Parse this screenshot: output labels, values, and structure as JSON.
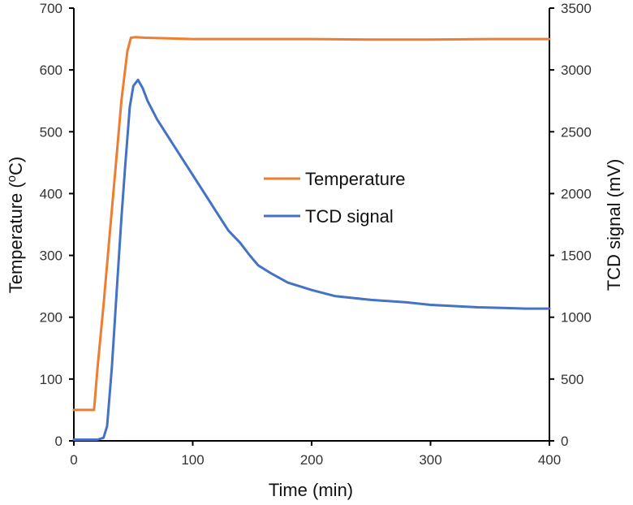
{
  "chart_data": {
    "type": "line",
    "title": "",
    "xlabel": "Time (min)",
    "ylabel_left": {
      "text": "Temperature (",
      "superscript": "o",
      "suffix": "C)"
    },
    "ylabel_right": "TCD signal (mV)",
    "xlim": [
      0,
      400
    ],
    "ylim_left": [
      0,
      700
    ],
    "ylim_right": [
      0,
      3500
    ],
    "x_ticks": [
      "0",
      "100",
      "200",
      "300",
      "400"
    ],
    "y_left_ticks": [
      "0",
      "100",
      "200",
      "300",
      "400",
      "500",
      "600",
      "700"
    ],
    "y_right_ticks": [
      "0",
      "500",
      "1000",
      "1500",
      "2000",
      "2500",
      "3000",
      "3500"
    ],
    "grid": false,
    "legend_position": "center",
    "series": [
      {
        "name": "Temperature",
        "axis": "left",
        "color": "#ED7D31",
        "x": [
          0,
          17,
          20,
          25,
          30,
          35,
          40,
          45,
          48,
          52,
          60,
          80,
          100,
          150,
          200,
          250,
          300,
          350,
          400
        ],
        "y": [
          50,
          50,
          120,
          220,
          330,
          440,
          550,
          630,
          652,
          653,
          652,
          651,
          650,
          650,
          650,
          649,
          649,
          650,
          650
        ]
      },
      {
        "name": "TCD signal",
        "axis": "right",
        "color": "#4472C4",
        "x": [
          0,
          20,
          25,
          28,
          32,
          36,
          40,
          43,
          47,
          50,
          54,
          58,
          62,
          70,
          80,
          90,
          100,
          110,
          120,
          130,
          140,
          148,
          155,
          165,
          180,
          200,
          220,
          250,
          280,
          300,
          320,
          340,
          360,
          380,
          400
        ],
        "y": [
          10,
          10,
          25,
          120,
          600,
          1200,
          1800,
          2200,
          2700,
          2870,
          2920,
          2850,
          2750,
          2600,
          2450,
          2300,
          2150,
          2000,
          1850,
          1700,
          1600,
          1500,
          1420,
          1360,
          1280,
          1220,
          1170,
          1140,
          1120,
          1100,
          1090,
          1080,
          1075,
          1070,
          1070
        ]
      }
    ]
  }
}
